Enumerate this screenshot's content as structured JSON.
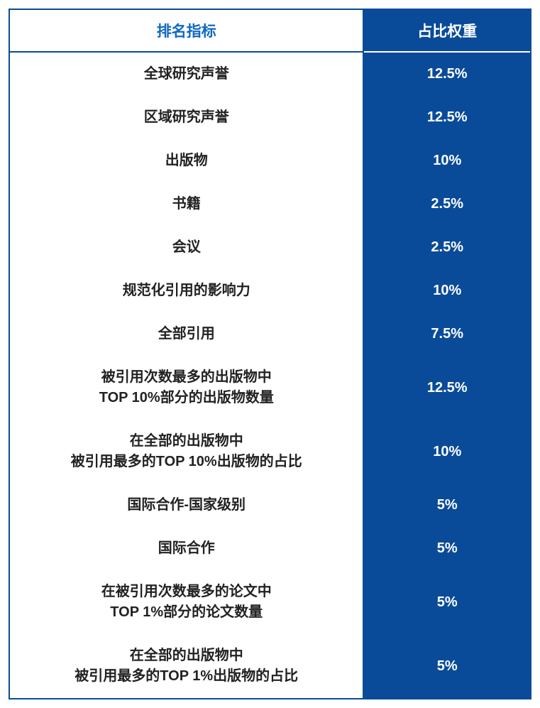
{
  "table": {
    "type": "table",
    "columns": [
      {
        "key": "indicator",
        "label": "排名指标",
        "width_pct": 68,
        "align": "center"
      },
      {
        "key": "weight",
        "label": "占比权重",
        "width_pct": 32,
        "align": "center"
      }
    ],
    "header_styles": {
      "indicator": {
        "bg": "#ffffff",
        "color": "#1068c4",
        "fontsize": 21,
        "fontweight": "bold"
      },
      "weight": {
        "bg": "#0a4b99",
        "color": "#ffffff",
        "fontsize": 21,
        "fontweight": "bold"
      }
    },
    "cell_styles": {
      "indicator": {
        "bg": "#ffffff",
        "color": "#222222",
        "fontsize": 20,
        "fontweight": "bold"
      },
      "weight": {
        "bg": "#0a4b99",
        "color": "#ffffff",
        "fontsize": 20,
        "fontweight": "bold"
      }
    },
    "border_color": "#0a4b99",
    "border_width": 2,
    "background_color": "#ffffff",
    "rows": [
      {
        "indicator": "全球研究声誉",
        "weight": "12.5%"
      },
      {
        "indicator": "区域研究声誉",
        "weight": "12.5%"
      },
      {
        "indicator": "出版物",
        "weight": "10%"
      },
      {
        "indicator": "书籍",
        "weight": "2.5%"
      },
      {
        "indicator": "会议",
        "weight": "2.5%"
      },
      {
        "indicator": "规范化引用的影响力",
        "weight": "10%"
      },
      {
        "indicator": "全部引用",
        "weight": "7.5%"
      },
      {
        "indicator": "被引用次数最多的出版物中\nTOP 10%部分的出版物数量",
        "weight": "12.5%"
      },
      {
        "indicator": "在全部的出版物中\n被引用最多的TOP 10%出版物的占比",
        "weight": "10%"
      },
      {
        "indicator": "国际合作-国家级别",
        "weight": "5%"
      },
      {
        "indicator": "国际合作",
        "weight": "5%"
      },
      {
        "indicator": "在被引用次数最多的论文中\nTOP 1%部分的论文数量",
        "weight": "5%"
      },
      {
        "indicator": "在全部的出版物中\n被引用最多的TOP 1%出版物的占比",
        "weight": "5%"
      }
    ]
  }
}
